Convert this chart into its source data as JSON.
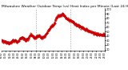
{
  "title": "Milwaukee Weather Outdoor Temp (vs) Heat Index per Minute (Last 24 Hours)",
  "title_fontsize": 3.2,
  "bg_color": "#ffffff",
  "line_color": "#cc0000",
  "grid_color": "#999999",
  "y_ticks": [
    10,
    20,
    30,
    40,
    50,
    60,
    70,
    80,
    90,
    100
  ],
  "y_tick_labels": [
    "10",
    "20",
    "30",
    "40",
    "50",
    "60",
    "70",
    "80",
    "90",
    "100"
  ],
  "ylim": [
    8,
    102
  ],
  "xlim": [
    0,
    1439
  ],
  "x_tick_count": 25,
  "vline_positions": [
    480,
    960
  ],
  "data_seed": 7
}
